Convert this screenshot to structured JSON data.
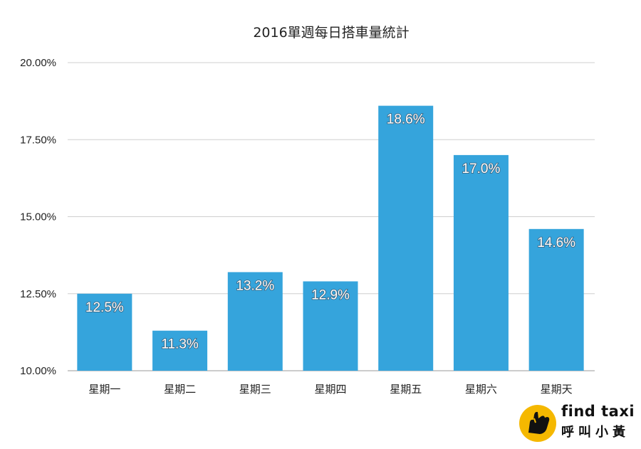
{
  "chart_data": {
    "type": "bar",
    "title": "2016單週每日搭車量統計",
    "categories": [
      "星期一",
      "星期二",
      "星期三",
      "星期四",
      "星期五",
      "星期六",
      "星期天"
    ],
    "values": [
      12.5,
      11.3,
      13.2,
      12.9,
      18.6,
      17.0,
      14.6
    ],
    "data_labels": [
      "12.5%",
      "11.3%",
      "13.2%",
      "12.9%",
      "18.6%",
      "17.0%",
      "14.6%"
    ],
    "ylim": [
      10,
      20
    ],
    "yticks": [
      10,
      12.5,
      15,
      17.5,
      20
    ],
    "ytick_labels": [
      "10.00%",
      "12.50%",
      "15.00%",
      "17.50%",
      "20.00%"
    ],
    "xlabel": "",
    "ylabel": "",
    "grid": true,
    "bar_color": "#35a4dc"
  },
  "logo": {
    "name_en": "find taxi",
    "name_zh": "呼叫小黃",
    "icon": "taxi-hand-icon",
    "color_yellow": "#f5b800"
  }
}
